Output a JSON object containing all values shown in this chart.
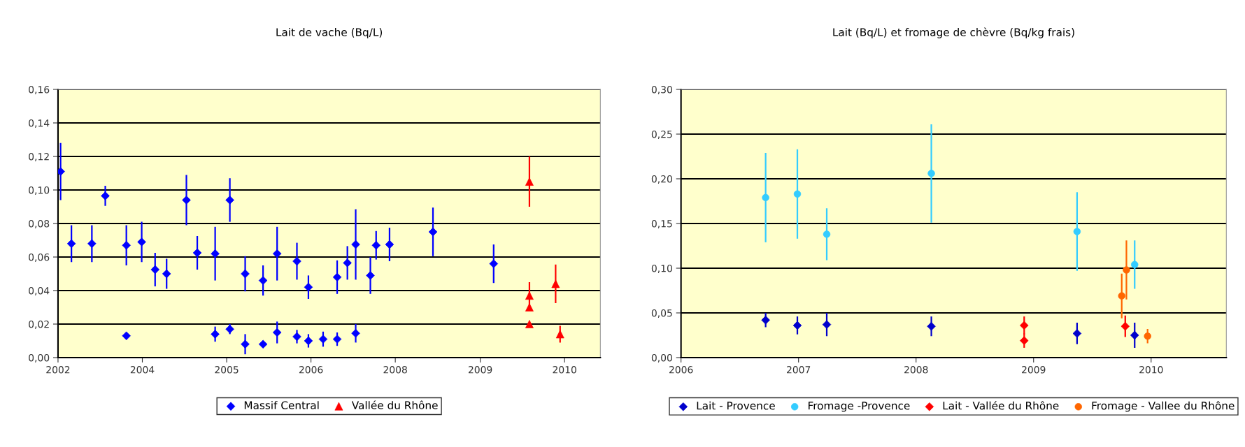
{
  "chart_data": [
    {
      "type": "scatter",
      "title": "Lait de vache (Bq/L)",
      "legend": "bottom",
      "grid": "y",
      "xlim": [
        2002.32,
        2010.81
      ],
      "xticks": [
        {
          "value": 2002.32,
          "label": "2002"
        },
        {
          "value": 2003.64,
          "label": "2004"
        },
        {
          "value": 2004.96,
          "label": "2005"
        },
        {
          "value": 2006.28,
          "label": "2006"
        },
        {
          "value": 2007.6,
          "label": "2008"
        },
        {
          "value": 2008.93,
          "label": "2009"
        },
        {
          "value": 2010.25,
          "label": "2010"
        }
      ],
      "ylim": [
        0,
        0.16
      ],
      "yticks": [
        {
          "value": 0,
          "label": "0,00"
        },
        {
          "value": 0.02,
          "label": "0,02"
        },
        {
          "value": 0.04,
          "label": "0,04"
        },
        {
          "value": 0.06,
          "label": "0,06"
        },
        {
          "value": 0.08,
          "label": "0,08"
        },
        {
          "value": 0.1,
          "label": "0,10"
        },
        {
          "value": 0.12,
          "label": "0,12"
        },
        {
          "value": 0.14,
          "label": "0,14"
        },
        {
          "value": 0.16,
          "label": "0,16"
        }
      ],
      "series": [
        {
          "name": "Massif Central",
          "color": "#0000ff",
          "marker": "diamond",
          "x": [
            2002.36,
            2002.53,
            2002.85,
            2003.06,
            2003.39,
            2003.39,
            2003.63,
            2003.84,
            2004.02,
            2004.33,
            2004.5,
            2004.78,
            2004.78,
            2005.01,
            2005.01,
            2005.25,
            2005.25,
            2005.53,
            2005.53,
            2005.75,
            2005.75,
            2006.06,
            2006.06,
            2006.24,
            2006.24,
            2006.47,
            2006.69,
            2006.69,
            2006.85,
            2006.98,
            2006.98,
            2007.21,
            2007.3,
            2007.51,
            2008.19,
            2009.14
          ],
          "values": [
            0.111,
            0.068,
            0.068,
            0.0965,
            0.013,
            0.067,
            0.069,
            0.0525,
            0.05,
            0.094,
            0.0625,
            0.062,
            0.014,
            0.094,
            0.017,
            0.05,
            0.008,
            0.046,
            0.008,
            0.062,
            0.015,
            0.0575,
            0.0125,
            0.042,
            0.01,
            0.011,
            0.048,
            0.011,
            0.0565,
            0.0675,
            0.0145,
            0.049,
            0.067,
            0.0675,
            0.075,
            0.056
          ],
          "errors": [
            0.017,
            0.011,
            0.011,
            0.006,
            null,
            0.012,
            0.012,
            0.01,
            0.009,
            0.015,
            0.01,
            0.016,
            0.0045,
            0.013,
            0.003,
            0.0105,
            0.006,
            0.009,
            null,
            0.016,
            0.0065,
            0.011,
            0.004,
            0.007,
            0.004,
            0.0045,
            0.01,
            0.004,
            0.01,
            0.021,
            0.0055,
            0.011,
            0.0085,
            0.01,
            0.0145,
            0.0115
          ]
        },
        {
          "name": "Vallée du Rhône",
          "color": "#ff0000",
          "marker": "triangle",
          "x": [
            2009.7,
            2009.7,
            2009.7,
            2009.7,
            2010.11,
            2010.18
          ],
          "values": [
            0.105,
            0.037,
            0.03,
            0.02,
            0.044,
            0.014
          ],
          "errors": [
            0.015,
            0.008,
            null,
            null,
            0.0115,
            0.005
          ]
        }
      ]
    },
    {
      "type": "scatter",
      "title": "Lait (Bq/L) et fromage de chèvre (Bq/kg frais)",
      "legend": "bottom",
      "grid": "y",
      "xlim": [
        2006,
        2010.64
      ],
      "xticks": [
        2006,
        2007,
        2008,
        2009,
        2010
      ],
      "ylim": [
        0,
        0.3
      ],
      "yticks": [
        {
          "value": 0,
          "label": "0,00"
        },
        {
          "value": 0.05,
          "label": "0,05"
        },
        {
          "value": 0.1,
          "label": "0,10"
        },
        {
          "value": 0.15,
          "label": "0,15"
        },
        {
          "value": 0.2,
          "label": "0,20"
        },
        {
          "value": 0.25,
          "label": "0,25"
        },
        {
          "value": 0.3,
          "label": "0,30"
        }
      ],
      "series": [
        {
          "name": "Lait - Provence",
          "color": "#0000cc",
          "marker": "diamond",
          "x": [
            2006.72,
            2006.99,
            2007.24,
            2008.13,
            2009.37,
            2009.86
          ],
          "values": [
            0.042,
            0.036,
            0.037,
            0.035,
            0.027,
            0.025
          ],
          "errors": [
            0.008,
            0.01,
            0.013,
            0.011,
            0.012,
            0.014
          ]
        },
        {
          "name": "Fromage -Provence",
          "color": "#33ccff",
          "marker": "circle",
          "x": [
            2006.72,
            2006.99,
            2007.24,
            2008.13,
            2009.37,
            2009.86
          ],
          "values": [
            0.179,
            0.183,
            0.138,
            0.206,
            0.141,
            0.104
          ],
          "errors": [
            0.05,
            0.05,
            0.029,
            0.055,
            0.044,
            0.027
          ]
        },
        {
          "name": "Lait - Vallée du Rhône",
          "color": "#ff0000",
          "marker": "diamond",
          "x": [
            2008.92,
            2008.92,
            2009.78
          ],
          "values": [
            0.036,
            0.019,
            0.035
          ],
          "errors": [
            0.01,
            0.008,
            0.012
          ]
        },
        {
          "name": "Fromage - Vallee du Rhône",
          "color": "#ff6600",
          "marker": "circle",
          "x": [
            2009.75,
            2009.79,
            2009.97
          ],
          "values": [
            0.069,
            0.098,
            0.024
          ],
          "errors": [
            0.025,
            0.033,
            0.008
          ]
        }
      ]
    }
  ]
}
